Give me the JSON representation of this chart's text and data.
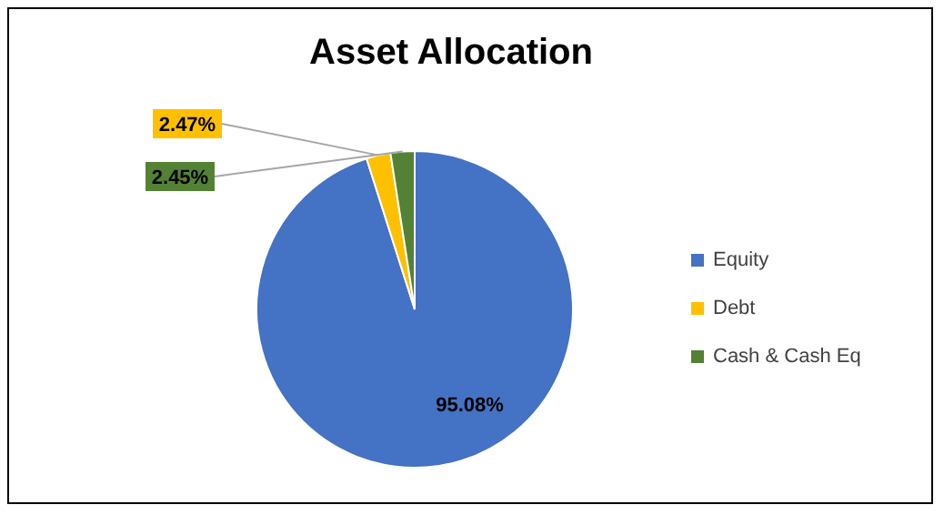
{
  "chart_data": {
    "type": "pie",
    "title": "Asset  Allocation",
    "categories": [
      "Equity",
      "Debt",
      "Cash & Cash Eq"
    ],
    "values": [
      95.08,
      2.47,
      2.45
    ],
    "colors": [
      "#4472c4",
      "#ffc000",
      "#548235"
    ],
    "value_labels": [
      "95.08%",
      "2.47%",
      "2.45%"
    ],
    "legend": "right"
  }
}
